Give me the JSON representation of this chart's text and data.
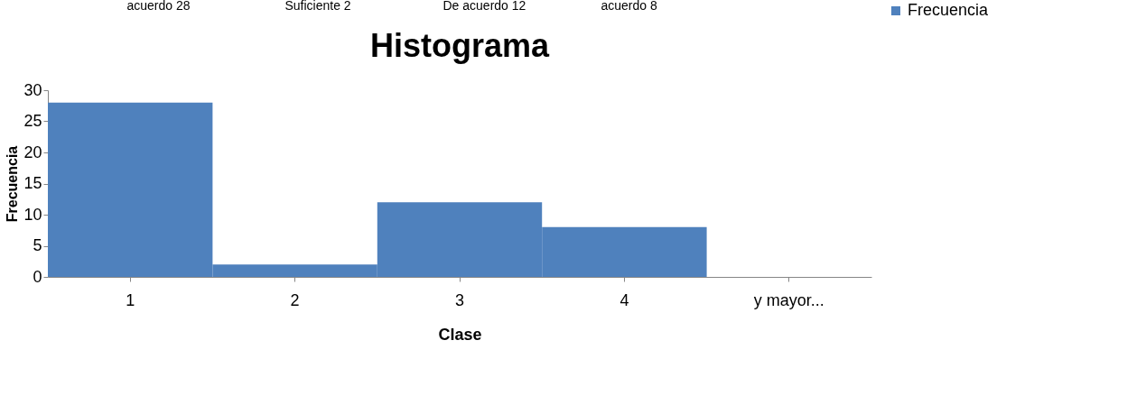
{
  "chart_data": {
    "type": "bar",
    "title": "Histograma",
    "xlabel": "Clase",
    "ylabel": "Frecuencia",
    "categories": [
      "1",
      "2",
      "3",
      "4",
      "y mayor..."
    ],
    "series": [
      {
        "name": "Frecuencia",
        "color": "#4f81bd",
        "values": [
          28,
          2,
          12,
          8,
          0
        ]
      }
    ],
    "ylim": [
      0,
      30
    ],
    "yticks": [
      0,
      5,
      10,
      15,
      20,
      25,
      30
    ],
    "grid": false,
    "legend": "right",
    "annotations": [
      "acuerdo 28",
      "Suficiente 2",
      "De acuerdo 12",
      "acuerdo 8"
    ]
  }
}
